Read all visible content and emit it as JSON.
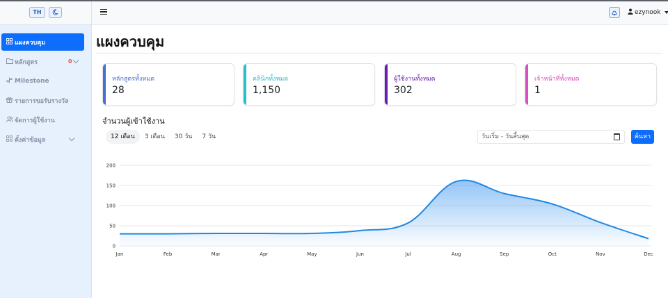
{
  "sidebar": {
    "lang_label": "TH",
    "theme_icon": "moon-icon",
    "items": [
      {
        "icon": "grid-icon",
        "label": "แผงควบคุม",
        "active": true
      },
      {
        "icon": "folder-icon",
        "label": "หลักสูตร",
        "badge": "0",
        "has_chevron": true
      },
      {
        "icon": "milestone-icon",
        "label": "Milestone"
      },
      {
        "icon": "gift-icon",
        "label": "รายการขอรับรางวัล"
      },
      {
        "icon": "users-icon",
        "label": "จัดการผู้ใช้งาน"
      },
      {
        "icon": "settings-icon",
        "label": "ตั้งค่าข้อมูล",
        "has_chevron": true
      }
    ]
  },
  "topbar": {
    "menu_icon": "hamburger-icon",
    "bell_icon": "bell-icon",
    "user_icon": "user-icon",
    "username": "ezynook"
  },
  "page_title": "แผงควบคุม",
  "stats": [
    {
      "label": "หลักสูตรทั้งหมด",
      "value": "28",
      "color": "#4a6fd0"
    },
    {
      "label": "คลินิกทั้งหมด",
      "value": "1,150",
      "color": "#2bbdc9"
    },
    {
      "label": "ผู้ใช้งานทั้งหมด",
      "value": "302",
      "color": "#6a1bb0"
    },
    {
      "label": "เจ้าหน้าที่ทั้งหมด",
      "value": "1",
      "color": "#d94fc0"
    }
  ],
  "chart_section": {
    "title": "จำนวนผู้เข้าใช้งาน",
    "range_tabs": [
      "12 เดือน",
      "3 เดือน",
      "30 วัน",
      "7 วัน"
    ],
    "active_tab": 0,
    "date_placeholder": "วันเริ่ม - วันสิ้นสุด",
    "search_label": "ค้นหา"
  },
  "chart_data": {
    "type": "area",
    "categories": [
      "Jan",
      "Feb",
      "Mar",
      "Apr",
      "May",
      "Jun",
      "Jul",
      "Aug",
      "Sep",
      "Oct",
      "Nov",
      "Dec"
    ],
    "series": [
      {
        "values": [
          30,
          30,
          31,
          31,
          31,
          38,
          57,
          160,
          130,
          104,
          58,
          18
        ]
      }
    ],
    "ylim": [
      0,
      200
    ],
    "yticks": [
      0,
      50,
      100,
      150,
      200
    ],
    "grid": true,
    "line_color": "#1f88e5",
    "fill_color": "#3b95f0"
  }
}
